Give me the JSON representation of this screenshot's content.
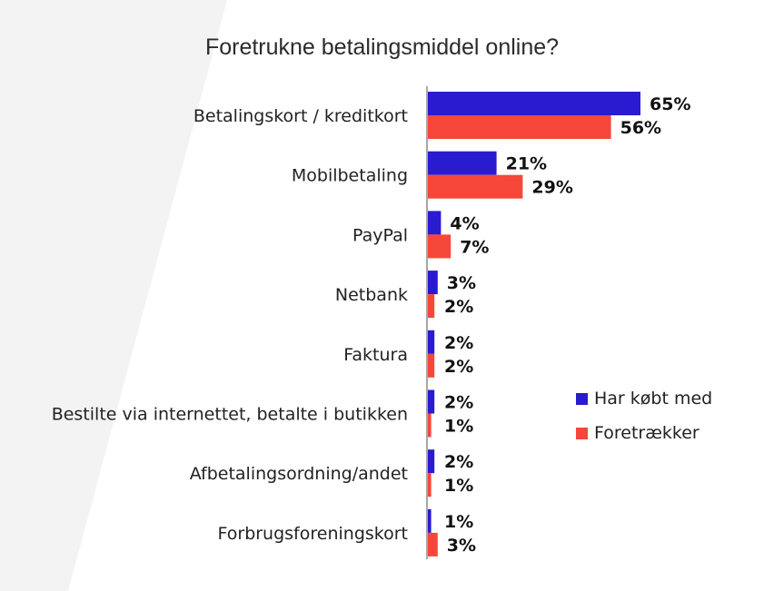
{
  "chart_data": {
    "type": "bar",
    "orientation": "horizontal",
    "title": "Foretrukne betalingsmiddel online?",
    "categories": [
      "Betalingskort / kreditkort",
      "Mobilbetaling",
      "PayPal",
      "Netbank",
      "Faktura",
      "Bestilte via internettet, betalte i butikken",
      "Afbetalingsordning/andet",
      "Forbrugsforeningskort"
    ],
    "series": [
      {
        "name": "Har købt med",
        "color": "#2a1bd0",
        "values": [
          65,
          21,
          4,
          3,
          2,
          2,
          2,
          1
        ],
        "labels": [
          "65%",
          "21%",
          "4%",
          "3%",
          "2%",
          "2%",
          "2%",
          "1%"
        ]
      },
      {
        "name": "Foretrækker",
        "color": "#f5473a",
        "values": [
          56,
          29,
          7,
          2,
          2,
          1,
          1,
          3
        ],
        "labels": [
          "56%",
          "29%",
          "7%",
          "2%",
          "2%",
          "1%",
          "1%",
          "3%"
        ]
      }
    ],
    "xlim": [
      0,
      70
    ],
    "grid": false,
    "legend_position": "right"
  }
}
